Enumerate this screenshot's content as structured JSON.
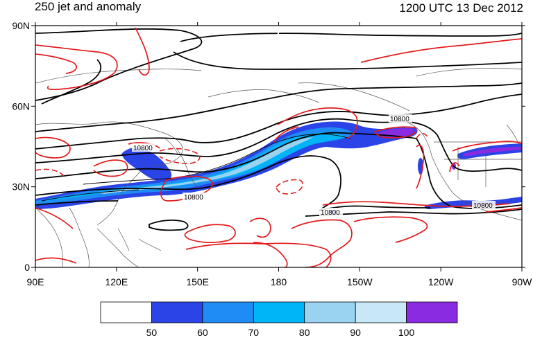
{
  "title": {
    "left": "250 jet and anomaly",
    "right": "1200 UTC 13 Dec 2012"
  },
  "map": {
    "lon_ticks": [
      {
        "lon": 90,
        "label": "90E"
      },
      {
        "lon": 120,
        "label": "120E"
      },
      {
        "lon": 150,
        "label": "150E"
      },
      {
        "lon": 180,
        "label": "180"
      },
      {
        "lon": 210,
        "label": "150W"
      },
      {
        "lon": 240,
        "label": "120W"
      },
      {
        "lon": 270,
        "label": "90W"
      }
    ],
    "lat_ticks": [
      {
        "lat": 0,
        "label": "0"
      },
      {
        "lat": 30,
        "label": "30N"
      },
      {
        "lat": 60,
        "label": "60N"
      },
      {
        "lat": 90,
        "label": "90N"
      }
    ],
    "contour_labels": [
      "10800",
      "10800",
      "10800",
      "10800",
      "10800"
    ]
  },
  "colorbar": {
    "labels": [
      "50",
      "60",
      "70",
      "80",
      "90",
      "100"
    ],
    "colors": [
      "#ffffff",
      "#2a44e8",
      "#1f8cf5",
      "#00b4f8",
      "#9ad3f2",
      "#c8e8f8",
      "#8a2be2"
    ]
  },
  "colors": {
    "anomaly": "#e41a1c",
    "height_contour": "#000000",
    "coast": "#555555"
  }
}
